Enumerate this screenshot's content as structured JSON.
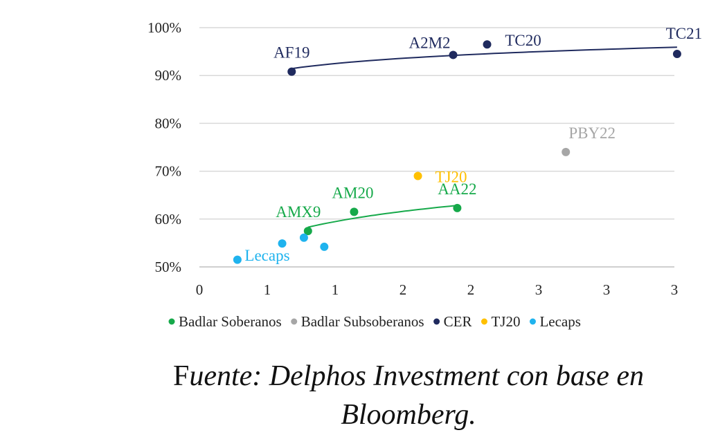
{
  "chart_data": {
    "type": "scatter",
    "title": "",
    "xlabel": "",
    "ylabel": "",
    "xlim": [
      0,
      3.5
    ],
    "ylim": [
      0.5,
      1.0
    ],
    "x_ticks": [
      0,
      0.5,
      1,
      1.5,
      2,
      2.5,
      3,
      3.5
    ],
    "x_tick_labels": [
      "0",
      "1",
      "1",
      "2",
      "2",
      "3",
      "3",
      "3"
    ],
    "y_ticks": [
      0.5,
      0.6,
      0.7,
      0.8,
      0.9,
      1.0
    ],
    "y_tick_labels": [
      "50%",
      "60%",
      "70%",
      "80%",
      "90%",
      "100%"
    ],
    "grid": "horizontal",
    "legend_position": "bottom",
    "series": [
      {
        "name": "Badlar Soberanos",
        "color": "#16a94a",
        "points": [
          {
            "x": 0.8,
            "y": 0.575,
            "label": "AMX9"
          },
          {
            "x": 1.14,
            "y": 0.615,
            "label": "AM20"
          },
          {
            "x": 1.9,
            "y": 0.623,
            "label": "AA22"
          }
        ],
        "trendline": "log"
      },
      {
        "name": "Badlar Subsoberanos",
        "color": "#a6a6a6",
        "points": [
          {
            "x": 2.7,
            "y": 0.74,
            "label": "PBY22"
          }
        ]
      },
      {
        "name": "CER",
        "color": "#1f2a5e",
        "points": [
          {
            "x": 0.68,
            "y": 0.908,
            "label": "AF19"
          },
          {
            "x": 1.87,
            "y": 0.943,
            "label": "A2M2"
          },
          {
            "x": 2.12,
            "y": 0.965,
            "label": "TC20"
          },
          {
            "x": 3.52,
            "y": 0.945,
            "label": "TC21"
          }
        ],
        "trendline": "log"
      },
      {
        "name": "TJ20",
        "color": "#ffc000",
        "points": [
          {
            "x": 1.61,
            "y": 0.69,
            "label": "TJ20"
          }
        ]
      },
      {
        "name": "Lecaps",
        "color": "#1fb3ee",
        "points": [
          {
            "x": 0.28,
            "y": 0.515
          },
          {
            "x": 0.61,
            "y": 0.549
          },
          {
            "x": 0.77,
            "y": 0.561
          },
          {
            "x": 0.92,
            "y": 0.542
          }
        ],
        "group_label": "Lecaps"
      }
    ]
  },
  "source": {
    "line1_initial": "F",
    "line1_rest": "uente: Delphos Investment con base en",
    "line2": "Bloomberg."
  }
}
